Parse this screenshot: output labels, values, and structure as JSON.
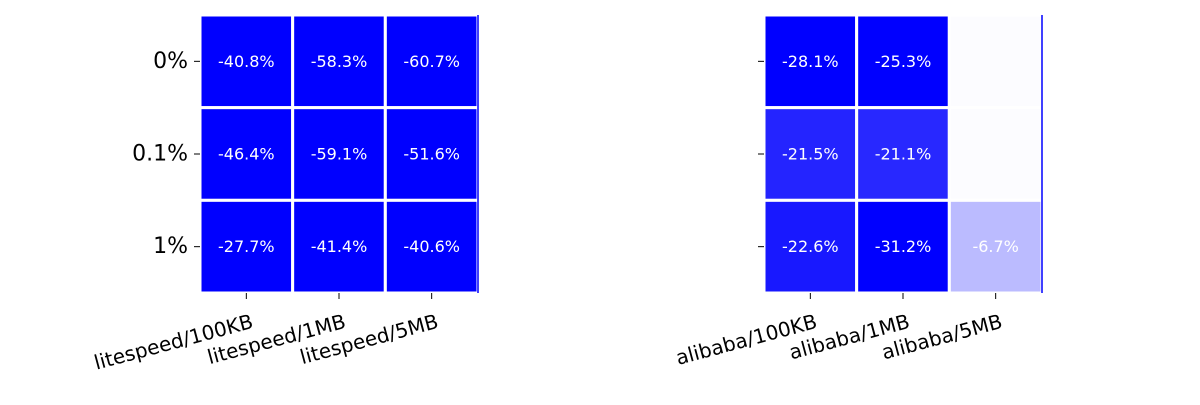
{
  "chart_data": [
    {
      "type": "heatmap",
      "title": "",
      "xlabel": "",
      "ylabel": "",
      "rows": [
        "0%",
        "0.1%",
        "1%"
      ],
      "columns": [
        "litespeed/100KB",
        "litespeed/1MB",
        "litespeed/5MB"
      ],
      "values": [
        [
          -40.8,
          -58.3,
          -60.7
        ],
        [
          -46.4,
          -59.1,
          -51.6
        ],
        [
          -27.7,
          -41.4,
          -40.6
        ]
      ],
      "labels": [
        [
          "-40.8%",
          "-58.3%",
          "-60.7%"
        ],
        [
          "-46.4%",
          "-59.1%",
          "-51.6%"
        ],
        [
          "-27.7%",
          "-41.4%",
          "-40.6%"
        ]
      ],
      "show_row_labels": true,
      "color_scale": {
        "low": "#0000ff",
        "high": "#ffffff",
        "saturate_at": -25
      }
    },
    {
      "type": "heatmap",
      "title": "",
      "xlabel": "",
      "ylabel": "",
      "rows": [
        "0%",
        "0.1%",
        "1%"
      ],
      "columns": [
        "alibaba/100KB",
        "alibaba/1MB",
        "alibaba/5MB"
      ],
      "values": [
        [
          -28.1,
          -25.3,
          null
        ],
        [
          -21.5,
          -21.1,
          null
        ],
        [
          -22.6,
          -31.2,
          -6.7
        ]
      ],
      "labels": [
        [
          "-28.1%",
          "-25.3%",
          ""
        ],
        [
          "-21.5%",
          "-21.1%",
          ""
        ],
        [
          "-22.6%",
          "-31.2%",
          "-6.7%"
        ]
      ],
      "show_row_labels": false,
      "color_scale": {
        "low": "#0000ff",
        "high": "#ffffff",
        "saturate_at": -25
      }
    }
  ]
}
